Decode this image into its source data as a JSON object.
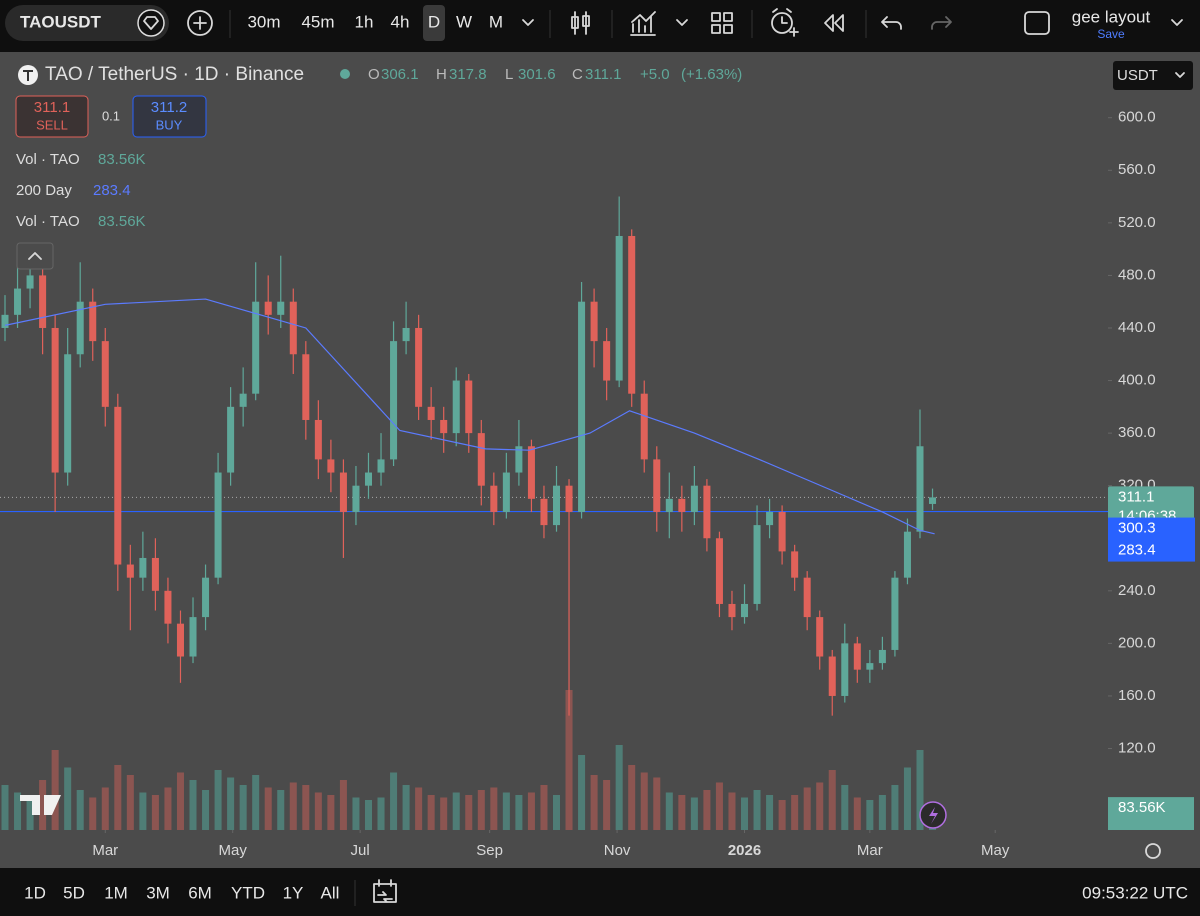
{
  "toolbar": {
    "symbol": "TAOUSDT",
    "intervals": [
      "30m",
      "45m",
      "1h",
      "4h",
      "D",
      "W",
      "M"
    ],
    "active_interval": 4,
    "layout_name": "gee layout",
    "layout_save": "Save"
  },
  "legend": {
    "title": "TAO / TetherUS · 1D · Binance",
    "ohlc_letters": [
      "O",
      "H",
      "L",
      "C"
    ],
    "change": "+5.0",
    "change_pct": "(+1.63%)",
    "sell": 311.1,
    "sell_label": "SELL",
    "spread": 0.1,
    "buy": 311.2,
    "buy_label": "BUY"
  },
  "currency": "USDT",
  "chart_data": {
    "type": "candlestick",
    "grid": false,
    "up_color": "#5fa89a",
    "down_color": "#e0625a",
    "up_volume_color": "#4f7d76",
    "down_volume_color": "#8c5551",
    "x": [
      0,
      6,
      12,
      18,
      24,
      30,
      36,
      42,
      48,
      54,
      60,
      66,
      72,
      78,
      84,
      90,
      96,
      102,
      108,
      114,
      120,
      126,
      132,
      138,
      144,
      150,
      156,
      162,
      168,
      174,
      180,
      186,
      192,
      198,
      204,
      210,
      216,
      222,
      228,
      234,
      240,
      246,
      252,
      258,
      264,
      270,
      276,
      282,
      288,
      294,
      300,
      306,
      312,
      318,
      324,
      330,
      336,
      342,
      348,
      354,
      360,
      366,
      372,
      378,
      384,
      390,
      396,
      402,
      408,
      414,
      420,
      426,
      432,
      438,
      444
    ],
    "open": [
      440,
      450,
      470,
      480,
      440,
      330,
      420,
      460,
      430,
      380,
      260,
      250,
      265,
      240,
      215,
      190,
      220,
      250,
      330,
      380,
      390,
      460,
      450,
      460,
      420,
      370,
      340,
      330,
      300,
      320,
      330,
      340,
      430,
      440,
      380,
      370,
      360,
      400,
      360,
      320,
      300,
      330,
      350,
      310,
      290,
      320,
      300,
      460,
      430,
      400,
      510,
      390,
      340,
      300,
      310,
      300,
      320,
      280,
      230,
      220,
      230,
      290,
      300,
      270,
      250,
      220,
      190,
      160,
      200,
      180,
      185,
      195,
      250,
      285,
      306.1
    ],
    "high": [
      465,
      490,
      495,
      490,
      450,
      440,
      490,
      470,
      440,
      390,
      275,
      285,
      280,
      250,
      225,
      235,
      260,
      345,
      395,
      410,
      490,
      480,
      495,
      470,
      430,
      385,
      355,
      340,
      335,
      345,
      360,
      445,
      460,
      450,
      395,
      380,
      410,
      405,
      370,
      330,
      345,
      370,
      355,
      320,
      335,
      325,
      475,
      470,
      440,
      540,
      515,
      400,
      350,
      330,
      320,
      335,
      325,
      285,
      240,
      245,
      305,
      310,
      305,
      275,
      255,
      225,
      195,
      215,
      205,
      195,
      205,
      255,
      295,
      378,
      317.8
    ],
    "low": [
      430,
      440,
      455,
      420,
      300,
      320,
      410,
      415,
      365,
      240,
      210,
      240,
      225,
      200,
      170,
      185,
      210,
      245,
      320,
      365,
      385,
      435,
      440,
      405,
      355,
      325,
      315,
      265,
      290,
      310,
      320,
      335,
      420,
      370,
      355,
      345,
      350,
      345,
      305,
      290,
      295,
      320,
      300,
      280,
      285,
      145,
      295,
      410,
      385,
      395,
      380,
      330,
      285,
      280,
      285,
      290,
      270,
      220,
      210,
      215,
      225,
      280,
      260,
      240,
      210,
      180,
      145,
      155,
      170,
      170,
      180,
      190,
      245,
      280,
      301.6
    ],
    "close": [
      450,
      470,
      480,
      440,
      330,
      420,
      460,
      430,
      380,
      260,
      250,
      265,
      240,
      215,
      190,
      220,
      250,
      330,
      380,
      390,
      460,
      450,
      460,
      420,
      370,
      340,
      330,
      300,
      320,
      330,
      340,
      430,
      440,
      380,
      370,
      360,
      400,
      360,
      320,
      300,
      330,
      350,
      310,
      290,
      320,
      300,
      460,
      430,
      400,
      510,
      390,
      340,
      300,
      310,
      300,
      320,
      280,
      230,
      220,
      230,
      290,
      300,
      270,
      250,
      220,
      190,
      160,
      200,
      180,
      185,
      195,
      250,
      285,
      350,
      311.1
    ],
    "volume": {
      "name": "Vol · TAO",
      "last_label": "83.56K",
      "values": [
        180000,
        150000,
        140000,
        200000,
        320000,
        250000,
        160000,
        130000,
        170000,
        260000,
        220000,
        150000,
        140000,
        170000,
        230000,
        200000,
        160000,
        240000,
        210000,
        180000,
        220000,
        170000,
        160000,
        190000,
        180000,
        150000,
        140000,
        200000,
        130000,
        120000,
        130000,
        230000,
        180000,
        170000,
        140000,
        130000,
        150000,
        140000,
        160000,
        170000,
        150000,
        140000,
        150000,
        180000,
        140000,
        560000,
        300000,
        220000,
        200000,
        340000,
        260000,
        230000,
        210000,
        150000,
        140000,
        130000,
        160000,
        190000,
        150000,
        130000,
        160000,
        140000,
        120000,
        140000,
        170000,
        190000,
        240000,
        180000,
        130000,
        120000,
        140000,
        180000,
        250000,
        320000,
        83560
      ]
    },
    "ma": {
      "name": "200 Day",
      "color": "#5b7bff",
      "x": [
        0,
        48,
        96,
        144,
        189,
        230,
        251,
        280,
        299,
        330,
        361,
        395,
        420,
        438,
        445
      ],
      "values": [
        442,
        458,
        462,
        440,
        362,
        348,
        347,
        360,
        377,
        360,
        340,
        317,
        300,
        286,
        283.4
      ]
    },
    "hline": {
      "value": 300.3,
      "color": "#2962ff"
    },
    "countdown": "14:06:38",
    "xlim": [
      0,
      528
    ],
    "xticks": [
      {
        "value": 48,
        "label": "Mar"
      },
      {
        "value": 109,
        "label": "May"
      },
      {
        "value": 170,
        "label": "Jul"
      },
      {
        "value": 232,
        "label": "Sep"
      },
      {
        "value": 293,
        "label": "Nov"
      },
      {
        "value": 354,
        "label": "2026"
      },
      {
        "value": 414,
        "label": "Mar"
      },
      {
        "value": 474,
        "label": "May"
      }
    ],
    "ylim": [
      58,
      650
    ],
    "yticks": [
      {
        "value": 120,
        "label": "120.0"
      },
      {
        "value": 160,
        "label": "160.0"
      },
      {
        "value": 200,
        "label": "200.0"
      },
      {
        "value": 240,
        "label": "240.0"
      },
      {
        "value": 280,
        "label": "280.0"
      },
      {
        "value": 320,
        "label": "320.0"
      },
      {
        "value": 360,
        "label": "360.0"
      },
      {
        "value": 400,
        "label": "400.0"
      },
      {
        "value": 440,
        "label": "440.0"
      },
      {
        "value": 480,
        "label": "480.0"
      },
      {
        "value": 520,
        "label": "520.0"
      },
      {
        "value": 560,
        "label": "560.0"
      },
      {
        "value": 600,
        "label": "600.0"
      }
    ]
  },
  "bottom_bar": {
    "ranges": [
      "1D",
      "5D",
      "1M",
      "3M",
      "6M",
      "YTD",
      "1Y",
      "All"
    ],
    "clock": "09:53:22 UTC"
  }
}
